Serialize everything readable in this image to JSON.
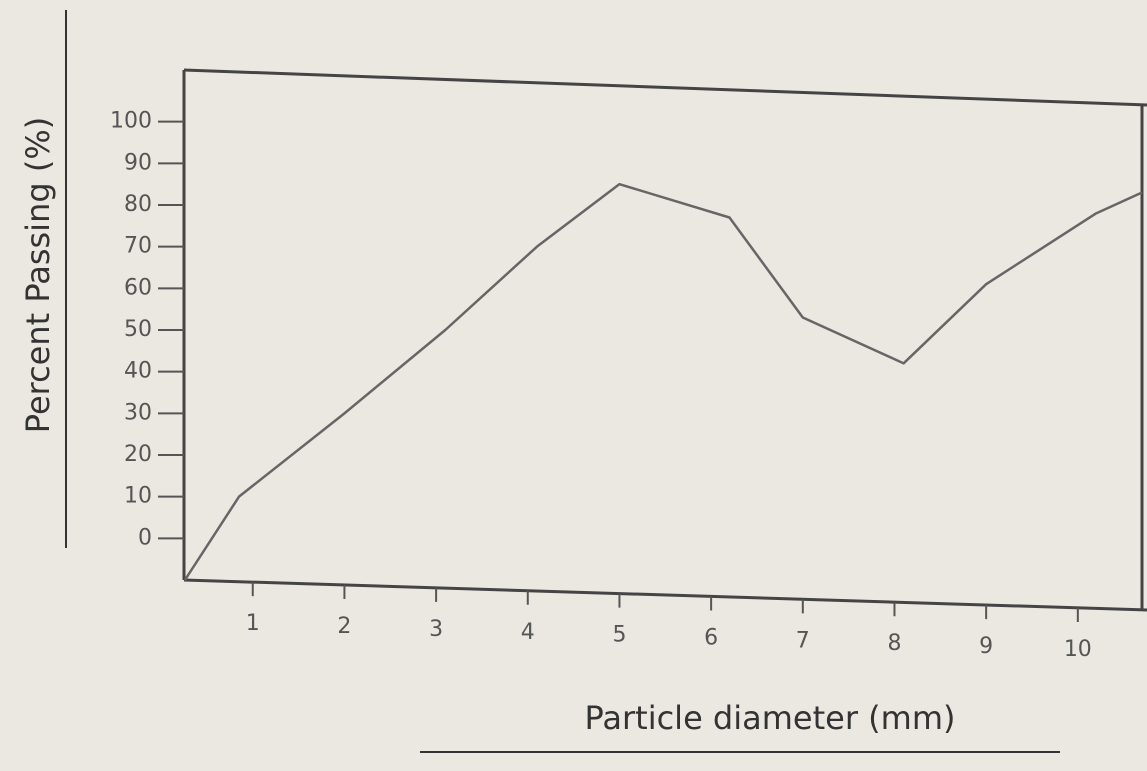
{
  "chart_data": {
    "type": "line",
    "x_label": "Particle diameter (mm)",
    "y_label": "Percent Passing (%)",
    "x": [
      0.26,
      0.85,
      2,
      3.1,
      4.1,
      5,
      6.2,
      7,
      8.1,
      9,
      10.2,
      10.7
    ],
    "series": [
      {
        "color": "#666666",
        "values": [
          -10,
          10,
          30,
          50,
          70,
          85,
          77,
          53,
          42,
          61,
          78,
          83
        ]
      }
    ],
    "xlim": [
      0.25,
      10.7
    ],
    "xticks": [
      1,
      2,
      3,
      4,
      5,
      6,
      7,
      8,
      9,
      10
    ],
    "ylim": [
      -10,
      110
    ],
    "yticks": [
      0,
      10,
      20,
      30,
      40,
      50,
      60,
      70,
      80,
      90,
      100
    ]
  }
}
